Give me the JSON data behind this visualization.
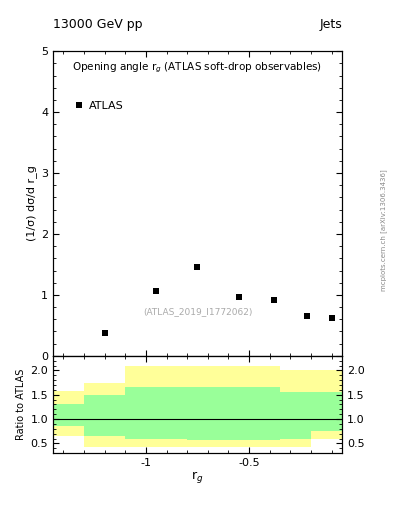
{
  "title_top": "13000 GeV pp",
  "title_right": "Jets",
  "plot_title": "Opening angle r$_g$ (ATLAS soft-drop observables)",
  "legend_label": "ATLAS",
  "watermark": "(ATLAS_2019_I1772062)",
  "ylabel_main": "(1/σ) dσ/d r_g",
  "ylabel_ratio": "Ratio to ATLAS",
  "xlabel": "r$_g$",
  "arxiv_label": "mcplots.cern.ch [arXiv:1306.3436]",
  "main_ylim": [
    0,
    5
  ],
  "main_yticks": [
    0,
    1,
    2,
    3,
    4,
    5
  ],
  "ratio_ylim": [
    0.3,
    2.3
  ],
  "ratio_yticks": [
    0.5,
    1.0,
    1.5,
    2.0
  ],
  "data_x": [
    -1.2,
    -0.95,
    -0.75,
    -0.55,
    -0.38,
    -0.22,
    -0.1
  ],
  "data_y": [
    0.38,
    1.07,
    1.46,
    0.96,
    0.91,
    0.65,
    0.62
  ],
  "xlim": [
    -1.45,
    -0.05
  ],
  "xticks": [
    -1.0,
    -0.5
  ],
  "xticklabels": [
    "-1",
    "-0.5"
  ],
  "bin_edges": [
    -1.45,
    -1.3,
    -1.1,
    -0.8,
    -0.6,
    -0.35,
    -0.2,
    -0.05
  ],
  "yellow_upper": [
    1.58,
    1.75,
    2.1,
    2.1,
    2.1,
    2.0,
    2.0
  ],
  "yellow_lower": [
    0.65,
    0.42,
    0.42,
    0.42,
    0.42,
    0.42,
    0.6
  ],
  "green_upper": [
    1.3,
    1.5,
    1.65,
    1.65,
    1.65,
    1.55,
    1.55
  ],
  "green_lower": [
    0.85,
    0.65,
    0.6,
    0.58,
    0.58,
    0.6,
    0.75
  ],
  "yellow_color": "#ffff99",
  "green_color": "#99ff99",
  "marker_color": "black",
  "marker_style": "s",
  "marker_size": 4,
  "background_color": "white",
  "arxiv_color": "#888888",
  "watermark_color": "#aaaaaa"
}
